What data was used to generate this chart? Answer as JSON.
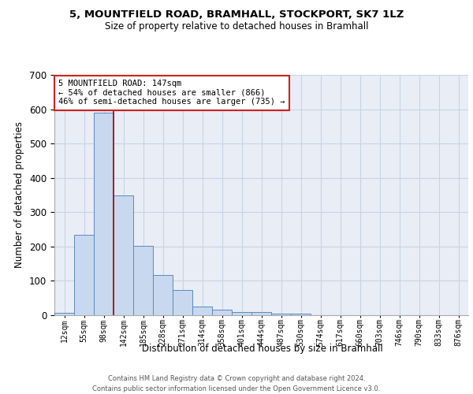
{
  "title_line1": "5, MOUNTFIELD ROAD, BRAMHALL, STOCKPORT, SK7 1LZ",
  "title_line2": "Size of property relative to detached houses in Bramhall",
  "xlabel": "Distribution of detached houses by size in Bramhall",
  "ylabel": "Number of detached properties",
  "categories": [
    "12sqm",
    "55sqm",
    "98sqm",
    "142sqm",
    "185sqm",
    "228sqm",
    "271sqm",
    "314sqm",
    "358sqm",
    "401sqm",
    "444sqm",
    "487sqm",
    "530sqm",
    "574sqm",
    "617sqm",
    "660sqm",
    "703sqm",
    "746sqm",
    "790sqm",
    "833sqm",
    "876sqm"
  ],
  "bar_values": [
    8,
    235,
    590,
    348,
    203,
    117,
    73,
    25,
    15,
    10,
    10,
    5,
    5,
    0,
    0,
    0,
    0,
    0,
    0,
    0,
    0
  ],
  "bar_fill_color": "#c8d8ee",
  "bar_edge_color": "#5a8abe",
  "vline_color": "#aa0000",
  "vline_x": 2.5,
  "ylim_max": 700,
  "yticks": [
    0,
    100,
    200,
    300,
    400,
    500,
    600,
    700
  ],
  "annotation_title": "5 MOUNTFIELD ROAD: 147sqm",
  "annotation_line2": "← 54% of detached houses are smaller (866)",
  "annotation_line3": "46% of semi-detached houses are larger (735) →",
  "footer_line1": "Contains HM Land Registry data © Crown copyright and database right 2024.",
  "footer_line2": "Contains public sector information licensed under the Open Government Licence v3.0.",
  "bg_axes": "#e8edf6",
  "grid_color": "#c8d4e4",
  "ann_edge_color": "#cc2222",
  "ann_face_color": "#ffffff"
}
